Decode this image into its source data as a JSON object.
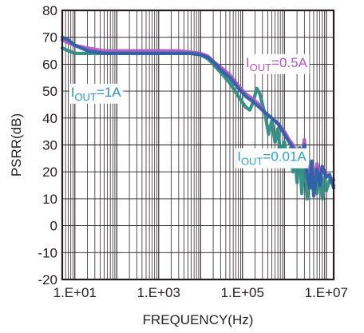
{
  "chart_data": {
    "type": "line",
    "title": "",
    "xlabel": "FREQUENCY(Hz)",
    "ylabel": "PSRR(dB)",
    "xscale": "log",
    "xlim": [
      5,
      15000000
    ],
    "ylim": [
      -20,
      80
    ],
    "xticks": [
      10,
      1000,
      100000,
      10000000
    ],
    "xtick_labels": [
      "1.E+01",
      "1.E+03",
      "1.E+05",
      "1.E+07"
    ],
    "yticks": [
      -20,
      -10,
      0,
      10,
      20,
      30,
      40,
      50,
      60,
      70,
      80
    ],
    "ytick_labels": [
      "-20",
      "-10",
      "0",
      "10",
      "20",
      "30",
      "40",
      "50",
      "60",
      "70",
      "80"
    ],
    "grid": true,
    "series": [
      {
        "name": "I_OUT=0.01A",
        "color": "#2e8b82",
        "x": [
          5,
          7,
          10,
          20,
          50,
          100,
          300,
          1000,
          3000,
          6000,
          10000,
          15000,
          20000,
          30000,
          50000,
          80000,
          120000,
          150000,
          180000,
          220000,
          260000,
          300000,
          350000,
          420000,
          500000,
          600000,
          700000,
          800000,
          1000000,
          1200000,
          1400000,
          1600000,
          1800000,
          2000000,
          2300000,
          2600000,
          3000000,
          3500000,
          4000000,
          4500000,
          5000000,
          6000000,
          7000000,
          8000000,
          9000000,
          10000000,
          12000000,
          15000000
        ],
        "y": [
          66,
          65,
          64,
          64,
          64,
          64,
          64,
          64,
          64,
          64,
          63.5,
          62,
          60,
          57,
          53,
          48,
          44,
          43,
          46,
          51,
          49,
          45,
          41,
          34,
          39,
          31,
          36,
          27,
          31,
          23,
          29,
          20,
          26,
          16,
          29,
          12,
          24,
          10,
          20,
          14,
          16,
          12,
          20,
          10,
          18,
          13,
          17,
          15
        ]
      },
      {
        "name": "I_OUT=0.5A",
        "color": "#b05ac0",
        "x": [
          5,
          7,
          10,
          20,
          50,
          100,
          300,
          1000,
          3000,
          6000,
          10000,
          15000,
          20000,
          30000,
          50000,
          80000,
          120000,
          180000,
          250000,
          350000,
          500000,
          700000,
          1000000,
          1300000,
          1600000,
          2000000,
          2500000,
          3000000,
          3500000,
          4000000,
          5000000,
          6000000,
          7000000,
          8000000,
          10000000,
          12000000,
          15000000
        ],
        "y": [
          69,
          68,
          67,
          66,
          65,
          65,
          65,
          65,
          65,
          64.5,
          64,
          63,
          61,
          59,
          56,
          52,
          49,
          47,
          45,
          42,
          40,
          38,
          35,
          32,
          30,
          27,
          24,
          32,
          20,
          22,
          18,
          23,
          20,
          22,
          19,
          18,
          17
        ]
      },
      {
        "name": "I_OUT=1A",
        "color": "#2f5fa8",
        "x": [
          5,
          7,
          10,
          20,
          50,
          100,
          300,
          1000,
          3000,
          6000,
          10000,
          15000,
          20000,
          30000,
          50000,
          80000,
          120000,
          180000,
          250000,
          350000,
          500000,
          700000,
          1000000,
          1300000,
          1600000,
          2000000,
          2500000,
          3000000,
          3500000,
          4000000,
          4500000,
          5000000,
          6000000,
          7000000,
          8000000,
          10000000,
          12000000,
          15000000
        ],
        "y": [
          70,
          69,
          67,
          65,
          64,
          64,
          64,
          64,
          64,
          64,
          63.5,
          62.5,
          61,
          58,
          55,
          51,
          48,
          46,
          44,
          42,
          40,
          38,
          34,
          31,
          29,
          26,
          23,
          30,
          19,
          14,
          24,
          11,
          21,
          15,
          22,
          18,
          19,
          14
        ]
      }
    ],
    "annotations": [
      {
        "prefix": "I",
        "sub": "OUT",
        "suffix": "=0.5A",
        "color": "#b05ac0",
        "x": 120000,
        "y": 59
      },
      {
        "prefix": "I",
        "sub": "OUT",
        "suffix": "=1A",
        "color": "#2f8fc8",
        "x": 8,
        "y": 48
      },
      {
        "prefix": "I",
        "sub": "OUT",
        "suffix": "=0.01A",
        "color": "#2fa0c8",
        "x": 75000,
        "y": 24
      }
    ]
  }
}
